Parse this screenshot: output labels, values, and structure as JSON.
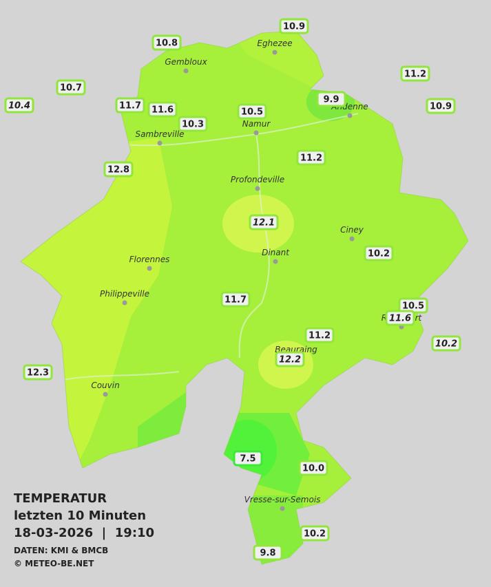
{
  "title": {
    "heading": "TEMPERATUR",
    "period": "letzten 10 Minuten",
    "timestamp": "18-03-2026  |  19:10",
    "source": "DATEN: KMI & BMCB",
    "copyright": "© METEO-BE.NET"
  },
  "places": [
    "Eghezee",
    "Gembloux",
    "Andenne",
    "Namur",
    "Sambreville",
    "Profondeville",
    "Ciney",
    "Dinant",
    "Florennes",
    "Philippeville",
    "Rochefort",
    "Beauraing",
    "Couvin",
    "Vresse-sur-Semois"
  ],
  "stations": [
    "10.8",
    "10.9",
    "10.7",
    "10.4",
    "11.7",
    "11.6",
    "10.3",
    "10.5",
    "9.9",
    "11.2",
    "10.9",
    "11.2",
    "12.8",
    "12.1",
    "10.2",
    "11.7",
    "10.5",
    "11.6",
    "10.2",
    "11.2",
    "12.2",
    "12.3",
    "7.5",
    "10.0",
    "10.2",
    "9.8"
  ]
}
